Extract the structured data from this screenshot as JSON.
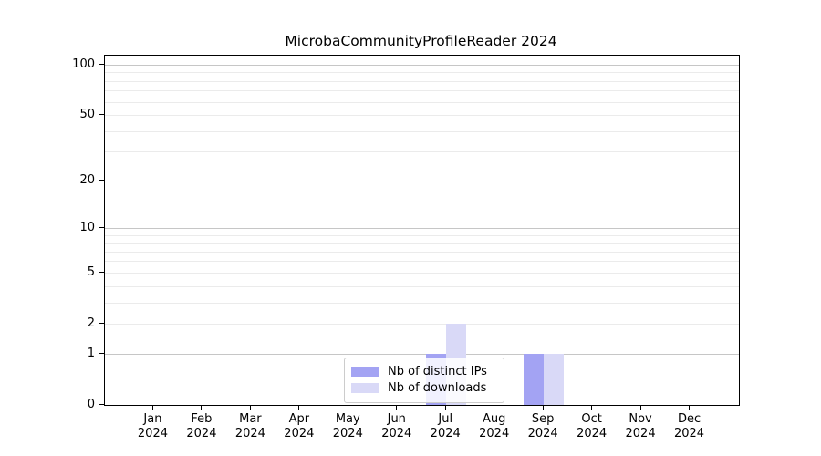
{
  "chart_data": {
    "type": "bar",
    "title": "MicrobaCommunityProfileReader 2024",
    "xlabel": "",
    "ylabel": "",
    "categories": [
      "Jan",
      "Feb",
      "Mar",
      "Apr",
      "May",
      "Jun",
      "Jul",
      "Aug",
      "Sep",
      "Oct",
      "Nov",
      "Dec"
    ],
    "year_label": "2024",
    "series": [
      {
        "name": "Nb of distinct IPs",
        "color": "#a3a3f3",
        "values": [
          0,
          0,
          0,
          0,
          0,
          0,
          1,
          0,
          1,
          0,
          0,
          0
        ]
      },
      {
        "name": "Nb of downloads",
        "color": "#d9d9f7",
        "values": [
          0,
          0,
          0,
          0,
          0,
          0,
          2,
          0,
          1,
          0,
          0,
          0
        ]
      }
    ],
    "yscale": "log1p",
    "ylim": [
      0,
      114
    ],
    "yticks_labeled": [
      0,
      1,
      2,
      5,
      10,
      20,
      50,
      100
    ],
    "grid_major": [
      1,
      10,
      100
    ],
    "grid_minor": [
      2,
      3,
      4,
      5,
      6,
      7,
      8,
      9,
      20,
      30,
      40,
      50,
      60,
      70,
      80,
      90
    ],
    "grid": true,
    "legend_position": "lower center-left inside plot",
    "colors": {
      "grid_major": "#c6c6c6",
      "grid_minor": "#ebebeb",
      "spine": "#000000",
      "legend_border": "#cccccc",
      "legend_background": "rgba(255,255,255,0.85)"
    }
  }
}
